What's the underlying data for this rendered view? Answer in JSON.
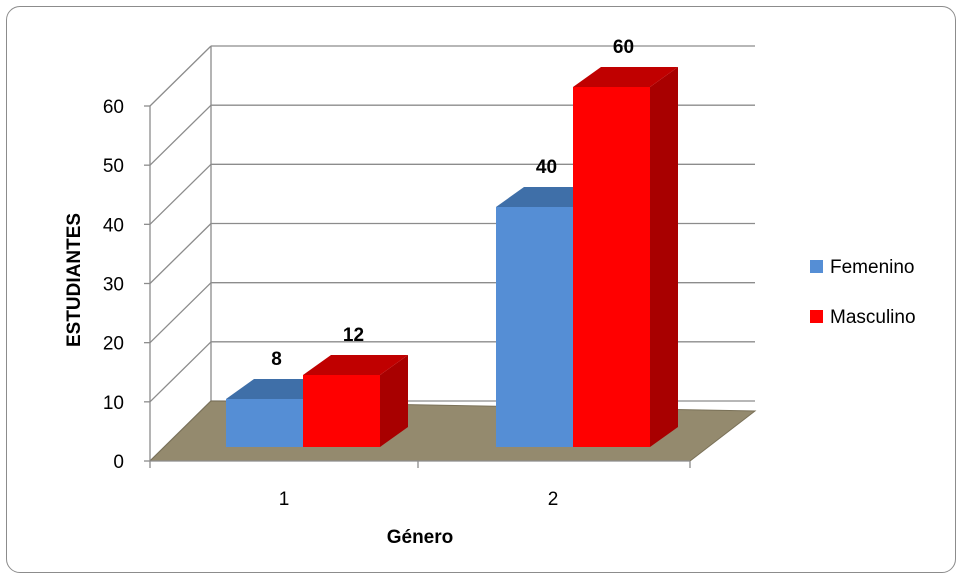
{
  "chart_data": {
    "type": "bar",
    "style": "3d-clustered-column",
    "categories": [
      "1",
      "2"
    ],
    "series": [
      {
        "name": "Femenino",
        "values": [
          8,
          40
        ],
        "color": "#558ed5",
        "top_color": "#3f6fa8"
      },
      {
        "name": "Masculino",
        "values": [
          12,
          60
        ],
        "color": "#ff0000",
        "side_color": "#a80000",
        "top_color": "#c00000"
      }
    ],
    "data_labels": [
      "8",
      "12",
      "40",
      "60"
    ],
    "xlabel": "Género",
    "ylabel": "ESTUDIANTES",
    "ylim": [
      0,
      60
    ],
    "yticks": [
      "0",
      "10",
      "20",
      "30",
      "40",
      "50",
      "60"
    ],
    "grid": true,
    "legend_position": "right",
    "floor_color": "#948a6e"
  }
}
